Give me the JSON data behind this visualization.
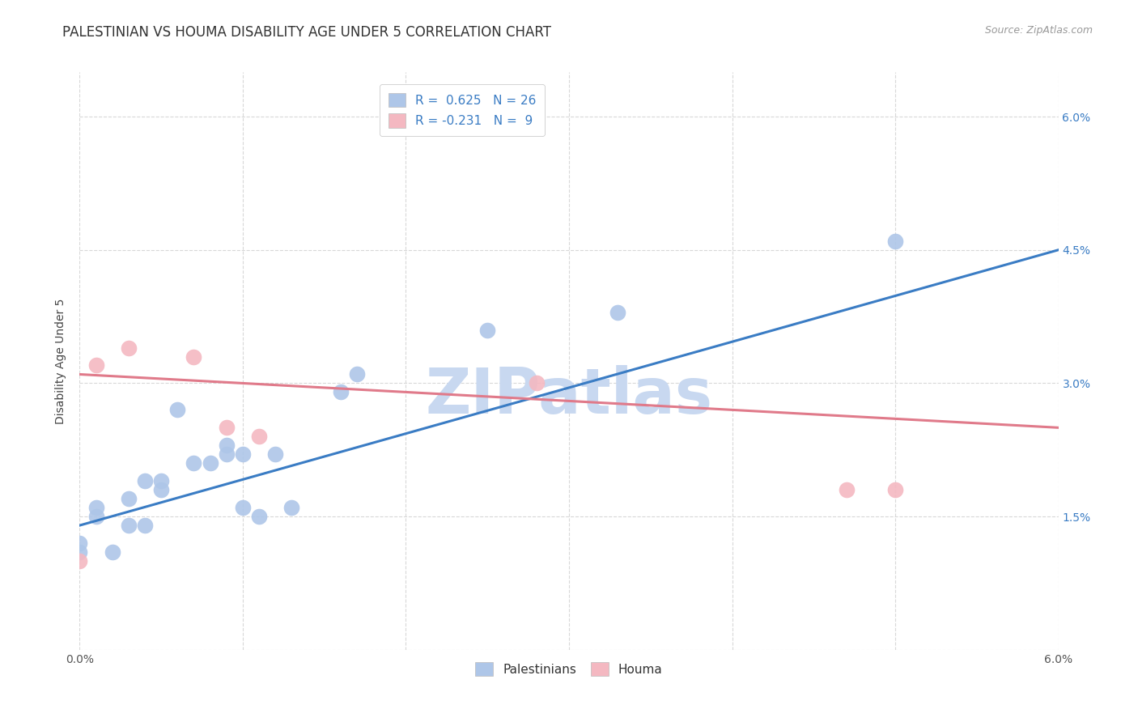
{
  "title": "PALESTINIAN VS HOUMA DISABILITY AGE UNDER 5 CORRELATION CHART",
  "source": "Source: ZipAtlas.com",
  "ylabel": "Disability Age Under 5",
  "xlim": [
    0.0,
    0.06
  ],
  "ylim": [
    0.0,
    0.065
  ],
  "yticks": [
    0.0,
    0.015,
    0.03,
    0.045,
    0.06
  ],
  "ytick_labels": [
    "",
    "1.5%",
    "3.0%",
    "4.5%",
    "6.0%"
  ],
  "xticks": [
    0.0,
    0.01,
    0.02,
    0.03,
    0.04,
    0.05,
    0.06
  ],
  "xtick_labels": [
    "0.0%",
    "",
    "",
    "",
    "",
    "",
    "6.0%"
  ],
  "palestinian_R": 0.625,
  "palestinian_N": 26,
  "houma_R": -0.231,
  "houma_N": 9,
  "palestinian_color": "#aec6e8",
  "houma_color": "#f4b8c1",
  "line_blue": "#3a7cc4",
  "line_pink": "#e07a8a",
  "background_color": "#ffffff",
  "grid_color": "#d8d8d8",
  "watermark": "ZIPatlas",
  "watermark_color": "#c8d8f0",
  "palestinian_x": [
    0.0,
    0.0,
    0.001,
    0.001,
    0.002,
    0.003,
    0.003,
    0.004,
    0.004,
    0.005,
    0.005,
    0.006,
    0.007,
    0.008,
    0.009,
    0.009,
    0.01,
    0.01,
    0.011,
    0.012,
    0.013,
    0.016,
    0.017,
    0.025,
    0.033,
    0.05
  ],
  "palestinian_y": [
    0.011,
    0.012,
    0.015,
    0.016,
    0.011,
    0.014,
    0.017,
    0.019,
    0.014,
    0.018,
    0.019,
    0.027,
    0.021,
    0.021,
    0.022,
    0.023,
    0.022,
    0.016,
    0.015,
    0.022,
    0.016,
    0.029,
    0.031,
    0.036,
    0.038,
    0.046
  ],
  "houma_x": [
    0.0,
    0.001,
    0.003,
    0.007,
    0.009,
    0.011,
    0.028,
    0.047,
    0.05
  ],
  "houma_y": [
    0.01,
    0.032,
    0.034,
    0.033,
    0.025,
    0.024,
    0.03,
    0.018,
    0.018
  ],
  "blue_line_x0": 0.0,
  "blue_line_y0": 0.014,
  "blue_line_x1": 0.06,
  "blue_line_y1": 0.045,
  "pink_line_x0": 0.0,
  "pink_line_y0": 0.031,
  "pink_line_x1": 0.06,
  "pink_line_y1": 0.025,
  "title_fontsize": 12,
  "axis_label_fontsize": 10,
  "tick_fontsize": 10,
  "legend_fontsize": 11
}
